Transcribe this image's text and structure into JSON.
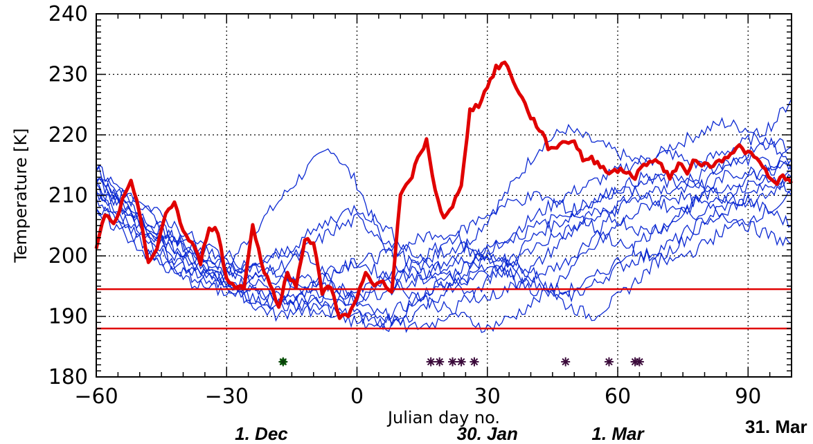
{
  "chart_data": {
    "type": "line",
    "title": "",
    "xlabel": "Julian day no.",
    "ylabel": "Temperature [K]",
    "xlim": [
      -60,
      100
    ],
    "ylim": [
      180,
      240
    ],
    "x_ticks": [
      -60,
      -30,
      0,
      30,
      60,
      90
    ],
    "y_ticks": [
      180,
      190,
      200,
      210,
      220,
      230,
      240
    ],
    "grid": "dotted at major ticks",
    "month_labels": [
      {
        "x": -22,
        "label": "1. Dec",
        "italic": true
      },
      {
        "x": 30,
        "label": "30. Jan",
        "italic": true
      },
      {
        "x": 60,
        "label": "1. Mar",
        "italic": true
      },
      {
        "x": 90,
        "label": "31. Mar",
        "italic": false
      }
    ],
    "colors": {
      "highlight_series": "#e00000",
      "background_series": "#0a28d2",
      "threshold_lines": "#e00000",
      "marker_green": "#1fa81f",
      "marker_dark": "#3a0a3a",
      "grid": "#000000"
    },
    "thresholds": [
      {
        "name": "",
        "y": 194.5
      },
      {
        "name": "",
        "y": 188
      }
    ],
    "highlight_series": {
      "name": "",
      "x": [
        -60,
        -58,
        -56,
        -54,
        -52,
        -50,
        -48,
        -46,
        -44,
        -42,
        -40,
        -38,
        -36,
        -34,
        -32,
        -30,
        -28,
        -26,
        -24,
        -22,
        -20,
        -18,
        -16,
        -14,
        -12,
        -10,
        -8,
        -6,
        -4,
        -2,
        0,
        2,
        4,
        6,
        8,
        10,
        12,
        14,
        16,
        18,
        20,
        22,
        24,
        26,
        28,
        30,
        32,
        34,
        36,
        38,
        40,
        42,
        44,
        46,
        48,
        50,
        52,
        54,
        56,
        58,
        60,
        62,
        64,
        66,
        68,
        70,
        72,
        74,
        76,
        78,
        80,
        82,
        84,
        86,
        88,
        90,
        92,
        94,
        96,
        98,
        100
      ],
      "y": [
        201,
        207,
        205,
        209,
        212,
        207,
        199,
        201,
        207,
        209,
        204,
        202,
        199,
        205,
        204,
        196,
        195,
        195,
        205,
        199,
        195,
        192,
        197,
        195,
        203,
        202,
        194,
        195,
        190,
        190,
        193,
        197,
        195,
        196,
        194,
        210,
        212,
        216,
        219,
        211,
        206,
        208,
        212,
        224,
        225,
        228,
        231,
        232,
        229,
        226,
        223,
        221,
        218,
        218,
        219,
        219,
        216,
        216,
        215,
        214,
        214,
        214,
        213,
        215,
        216,
        215,
        213,
        215,
        214,
        216,
        215,
        215,
        216,
        217,
        218,
        217,
        216,
        214,
        212,
        213,
        212
      ]
    },
    "background_series": [
      {
        "name": "",
        "x": [
          -60,
          -54,
          -48,
          -42,
          -36,
          -30,
          -24,
          -18,
          -12,
          -6,
          0,
          6,
          12,
          18,
          24,
          30,
          36,
          42,
          48,
          54,
          60,
          66,
          72,
          78,
          84,
          90,
          96,
          100
        ],
        "y": [
          212,
          208,
          205,
          203,
          200,
          198,
          204,
          209,
          214,
          218,
          212,
          202,
          196,
          198,
          201,
          206,
          212,
          218,
          221,
          219,
          217,
          215,
          218,
          220,
          222,
          221,
          218,
          216
        ]
      },
      {
        "name": "",
        "x": [
          -60,
          -54,
          -48,
          -42,
          -36,
          -30,
          -24,
          -18,
          -12,
          -6,
          0,
          6,
          12,
          18,
          24,
          30,
          36,
          42,
          48,
          54,
          60,
          66,
          72,
          78,
          84,
          90,
          96,
          100
        ],
        "y": [
          215,
          210,
          204,
          200,
          198,
          196,
          194,
          193,
          195,
          198,
          199,
          200,
          202,
          204,
          203,
          200,
          198,
          197,
          199,
          203,
          208,
          212,
          214,
          212,
          210,
          209,
          211,
          214
        ]
      },
      {
        "name": "",
        "x": [
          -60,
          -54,
          -48,
          -42,
          -36,
          -30,
          -24,
          -18,
          -12,
          -6,
          0,
          6,
          12,
          18,
          24,
          30,
          36,
          42,
          48,
          54,
          60,
          66,
          72,
          78,
          84,
          90,
          96,
          100
        ],
        "y": [
          210,
          207,
          203,
          199,
          197,
          197,
          199,
          201,
          200,
          196,
          192,
          190,
          192,
          195,
          198,
          201,
          204,
          207,
          210,
          212,
          214,
          216,
          217,
          215,
          217,
          219,
          222,
          226
        ]
      },
      {
        "name": "",
        "x": [
          -60,
          -54,
          -48,
          -42,
          -36,
          -30,
          -24,
          -18,
          -12,
          -6,
          0,
          6,
          12,
          18,
          24,
          30,
          36,
          42,
          48,
          54,
          60,
          66,
          72,
          78,
          84,
          90,
          96,
          100
        ],
        "y": [
          213,
          209,
          206,
          202,
          199,
          196,
          192,
          190,
          192,
          194,
          193,
          195,
          197,
          200,
          202,
          199,
          196,
          194,
          193,
          195,
          198,
          200,
          202,
          205,
          208,
          209,
          207,
          205
        ]
      },
      {
        "name": "",
        "x": [
          -60,
          -54,
          -48,
          -42,
          -36,
          -30,
          -24,
          -18,
          -12,
          -6,
          0,
          6,
          12,
          18,
          24,
          30,
          36,
          42,
          48,
          54,
          60,
          66,
          72,
          78,
          84,
          90,
          96,
          100
        ],
        "y": [
          208,
          206,
          205,
          203,
          201,
          199,
          196,
          194,
          193,
          191,
          190,
          189,
          191,
          194,
          197,
          200,
          199,
          196,
          192,
          190,
          193,
          197,
          201,
          204,
          207,
          210,
          212,
          213
        ]
      },
      {
        "name": "",
        "x": [
          -60,
          -54,
          -48,
          -42,
          -36,
          -30,
          -24,
          -18,
          -12,
          -6,
          0,
          6,
          12,
          18,
          24,
          30,
          36,
          42,
          48,
          54,
          60,
          66,
          72,
          78,
          84,
          90,
          96,
          100
        ],
        "y": [
          211,
          208,
          204,
          201,
          200,
          198,
          197,
          196,
          195,
          193,
          191,
          190,
          188,
          189,
          192,
          196,
          200,
          204,
          206,
          209,
          211,
          213,
          212,
          211,
          214,
          217,
          219,
          218
        ]
      },
      {
        "name": "",
        "x": [
          -60,
          -54,
          -48,
          -42,
          -36,
          -30,
          -24,
          -18,
          -12,
          -6,
          0,
          6,
          12,
          18,
          24,
          30,
          36,
          42,
          48,
          54,
          60,
          66,
          72,
          78,
          84,
          90,
          96,
          100
        ],
        "y": [
          209,
          205,
          201,
          198,
          196,
          195,
          196,
          198,
          201,
          204,
          206,
          203,
          199,
          196,
          194,
          193,
          195,
          199,
          203,
          207,
          206,
          204,
          205,
          209,
          213,
          214,
          213,
          211
        ]
      },
      {
        "name": "",
        "x": [
          -60,
          -54,
          -48,
          -42,
          -36,
          -30,
          -24,
          -18,
          -12,
          -6,
          0,
          6,
          12,
          18,
          24,
          30,
          36,
          42,
          48,
          54,
          60,
          66,
          72,
          78,
          84,
          90,
          96,
          100
        ],
        "y": [
          214,
          211,
          207,
          203,
          199,
          195,
          193,
          192,
          194,
          197,
          199,
          197,
          194,
          192,
          190,
          188,
          190,
          193,
          197,
          201,
          205,
          208,
          210,
          209,
          207,
          205,
          203,
          202
        ]
      },
      {
        "name": "",
        "x": [
          -60,
          -54,
          -48,
          -42,
          -36,
          -30,
          -24,
          -18,
          -12,
          -6,
          0,
          6,
          12,
          18,
          24,
          30,
          36,
          42,
          48,
          54,
          60,
          66,
          72,
          78,
          84,
          90,
          96,
          100
        ],
        "y": [
          212,
          210,
          208,
          205,
          202,
          200,
          198,
          197,
          196,
          195,
          194,
          196,
          198,
          201,
          204,
          207,
          209,
          210,
          208,
          205,
          202,
          200,
          199,
          201,
          204,
          206,
          208,
          210
        ]
      },
      {
        "name": "",
        "x": [
          -60,
          -54,
          -48,
          -42,
          -36,
          -30,
          -24,
          -18,
          -12,
          -6,
          0,
          6,
          12,
          18,
          24,
          30,
          36,
          42,
          48,
          54,
          60,
          66,
          72,
          78,
          84,
          90,
          96,
          100
        ],
        "y": [
          207,
          204,
          200,
          197,
          195,
          194,
          193,
          192,
          191,
          190,
          189,
          188,
          190,
          193,
          196,
          198,
          197,
          195,
          194,
          196,
          199,
          203,
          206,
          209,
          211,
          213,
          215,
          217
        ]
      },
      {
        "name": "",
        "x": [
          -60,
          -54,
          -48,
          -42,
          -36,
          -30,
          -24,
          -18,
          -12,
          -6,
          0,
          6,
          12,
          18,
          24,
          30,
          36,
          42,
          48,
          54,
          60,
          66,
          72,
          78,
          84,
          90,
          96,
          100
        ],
        "y": [
          213,
          209,
          205,
          201,
          198,
          197,
          198,
          200,
          203,
          206,
          208,
          205,
          201,
          198,
          196,
          197,
          199,
          202,
          204,
          206,
          208,
          210,
          211,
          213,
          215,
          216,
          215,
          214
        ]
      },
      {
        "name": "",
        "x": [
          -60,
          -54,
          -48,
          -42,
          -36,
          -30,
          -24,
          -18,
          -12,
          -6,
          0,
          6,
          12,
          18,
          24,
          30,
          36,
          42,
          48,
          54,
          60,
          66,
          72,
          78,
          84,
          90,
          96,
          100
        ],
        "y": [
          210,
          206,
          202,
          199,
          197,
          195,
          194,
          193,
          192,
          192,
          193,
          194,
          195,
          197,
          199,
          201,
          203,
          205,
          207,
          209,
          211,
          210,
          208,
          207,
          209,
          212,
          214,
          215
        ]
      }
    ],
    "markers": [
      {
        "x": -17,
        "y": 182.5,
        "color": "green"
      },
      {
        "x": 17,
        "y": 182.5,
        "color": "dark"
      },
      {
        "x": 19,
        "y": 182.5,
        "color": "dark"
      },
      {
        "x": 22,
        "y": 182.5,
        "color": "dark"
      },
      {
        "x": 24,
        "y": 182.5,
        "color": "dark"
      },
      {
        "x": 27,
        "y": 182.5,
        "color": "dark"
      },
      {
        "x": 48,
        "y": 182.5,
        "color": "dark"
      },
      {
        "x": 58,
        "y": 182.5,
        "color": "dark"
      },
      {
        "x": 64,
        "y": 182.5,
        "color": "dark"
      },
      {
        "x": 65,
        "y": 182.5,
        "color": "dark"
      }
    ]
  }
}
